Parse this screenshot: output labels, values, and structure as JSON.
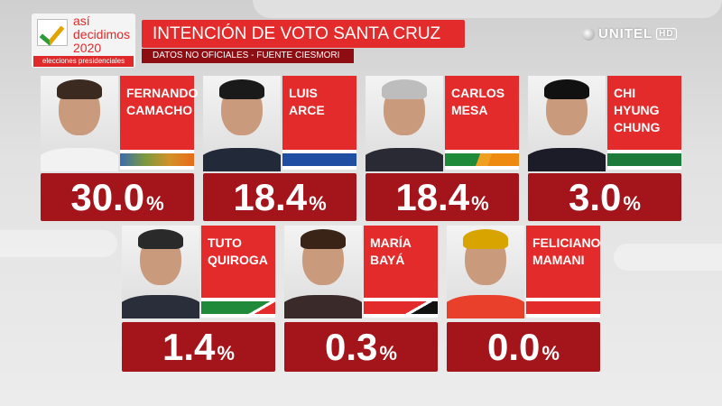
{
  "logo": {
    "line1": "así",
    "line2": "decidimos",
    "line3": "2020",
    "sub": "elecciones presidenciales"
  },
  "header": {
    "title": "INTENCIÓN DE VOTO SANTA CRUZ",
    "subtitle": "DATOS NO OFICIALES - FUENTE CIESMORI"
  },
  "channel": {
    "name": "UNITEL",
    "hd": "HD"
  },
  "candidates": [
    {
      "first": "FERNANDO",
      "last": "CAMACHO",
      "value": "30.0",
      "pct": "%"
    },
    {
      "first": "LUIS",
      "last": "ARCE",
      "value": "18.4",
      "pct": "%"
    },
    {
      "first": "CARLOS",
      "last": "MESA",
      "value": "18.4",
      "pct": "%"
    },
    {
      "first": "CHI HYUNG",
      "last": "CHUNG",
      "value": "3.0",
      "pct": "%"
    },
    {
      "first": "TUTO",
      "last": "QUIROGA",
      "value": "1.4",
      "pct": "%"
    },
    {
      "first": "MARÍA",
      "last": "BAYÁ",
      "value": "0.3",
      "pct": "%"
    },
    {
      "first": "FELICIANO",
      "last": "MAMANI",
      "value": "0.0",
      "pct": "%"
    }
  ],
  "colors": {
    "red": "#e32b2b",
    "darkred": "#a3141b"
  }
}
